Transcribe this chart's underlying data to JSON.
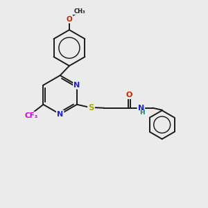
{
  "bg_color": "#ebebeb",
  "bond_color": "#1a1a1a",
  "N_color": "#2222cc",
  "O_color": "#cc2200",
  "S_color": "#aaaa00",
  "F_color": "#cc00cc",
  "NH_color": "#008888",
  "lw": 1.4,
  "figsize": [
    3.0,
    3.0
  ],
  "dpi": 100,
  "xlim": [
    0,
    10
  ],
  "ylim": [
    0,
    10
  ]
}
